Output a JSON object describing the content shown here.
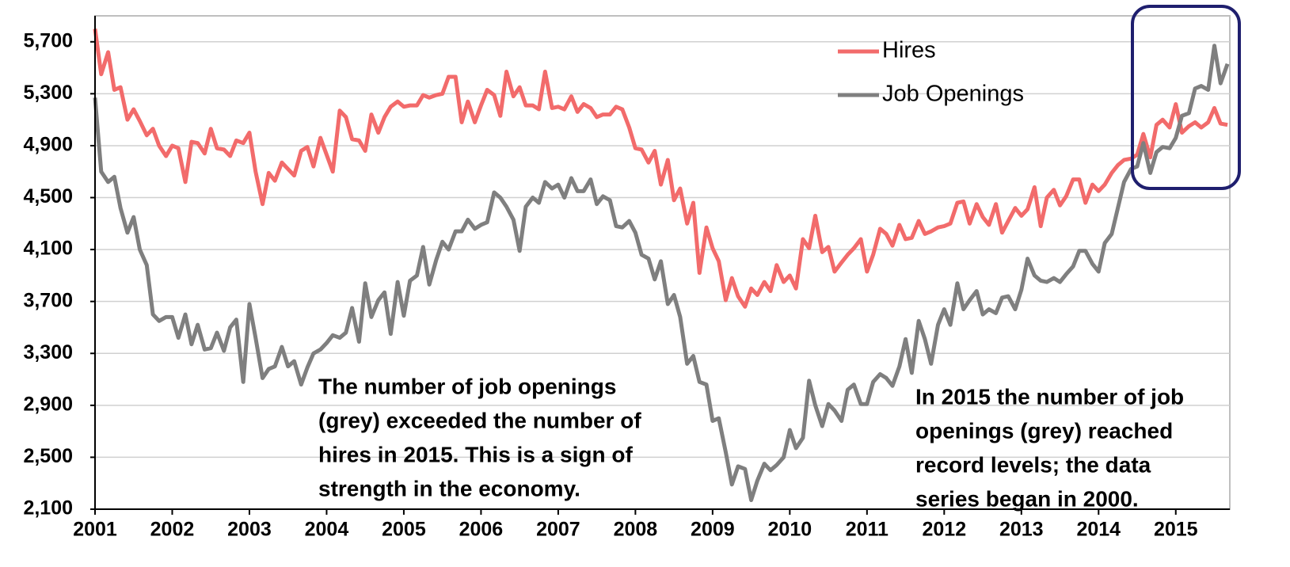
{
  "chart_data": {
    "type": "line",
    "x": [
      2001,
      2001.08,
      2001.17,
      2001.25,
      2001.33,
      2001.42,
      2001.5,
      2001.58,
      2001.67,
      2001.75,
      2001.83,
      2001.92,
      2002,
      2002.08,
      2002.17,
      2002.25,
      2002.33,
      2002.42,
      2002.5,
      2002.58,
      2002.67,
      2002.75,
      2002.83,
      2002.92,
      2003,
      2003.08,
      2003.17,
      2003.25,
      2003.33,
      2003.42,
      2003.5,
      2003.58,
      2003.67,
      2003.75,
      2003.83,
      2003.92,
      2004,
      2004.08,
      2004.17,
      2004.25,
      2004.33,
      2004.42,
      2004.5,
      2004.58,
      2004.67,
      2004.75,
      2004.83,
      2004.92,
      2005,
      2005.08,
      2005.17,
      2005.25,
      2005.33,
      2005.42,
      2005.5,
      2005.58,
      2005.67,
      2005.75,
      2005.83,
      2005.92,
      2006,
      2006.08,
      2006.17,
      2006.25,
      2006.33,
      2006.42,
      2006.5,
      2006.58,
      2006.67,
      2006.75,
      2006.83,
      2006.92,
      2007,
      2007.08,
      2007.17,
      2007.25,
      2007.33,
      2007.42,
      2007.5,
      2007.58,
      2007.67,
      2007.75,
      2007.83,
      2007.92,
      2008,
      2008.08,
      2008.17,
      2008.25,
      2008.33,
      2008.42,
      2008.5,
      2008.58,
      2008.67,
      2008.75,
      2008.83,
      2008.92,
      2009,
      2009.08,
      2009.17,
      2009.25,
      2009.33,
      2009.42,
      2009.5,
      2009.58,
      2009.67,
      2009.75,
      2009.83,
      2009.92,
      2010,
      2010.08,
      2010.17,
      2010.25,
      2010.33,
      2010.42,
      2010.5,
      2010.58,
      2010.67,
      2010.75,
      2010.83,
      2010.92,
      2011,
      2011.08,
      2011.17,
      2011.25,
      2011.33,
      2011.42,
      2011.5,
      2011.58,
      2011.67,
      2011.75,
      2011.83,
      2011.92,
      2012,
      2012.08,
      2012.17,
      2012.25,
      2012.33,
      2012.42,
      2012.5,
      2012.58,
      2012.67,
      2012.75,
      2012.83,
      2012.92,
      2013,
      2013.08,
      2013.17,
      2013.25,
      2013.33,
      2013.42,
      2013.5,
      2013.58,
      2013.67,
      2013.75,
      2013.83,
      2013.92,
      2014,
      2014.08,
      2014.17,
      2014.25,
      2014.33,
      2014.42,
      2014.5,
      2014.58,
      2014.67,
      2014.75,
      2014.83,
      2014.92,
      2015,
      2015.08,
      2015.17,
      2015.25,
      2015.33,
      2015.42,
      2015.5,
      2015.58,
      2015.67
    ],
    "series": [
      {
        "name": "Hires",
        "color": "#f26b6b",
        "values": [
          5800,
          5450,
          5620,
          5330,
          5350,
          5100,
          5180,
          5090,
          4980,
          5030,
          4900,
          4820,
          4900,
          4880,
          4620,
          4930,
          4920,
          4840,
          5030,
          4880,
          4870,
          4820,
          4940,
          4920,
          5000,
          4700,
          4450,
          4690,
          4630,
          4770,
          4720,
          4670,
          4860,
          4890,
          4740,
          4960,
          4830,
          4700,
          5170,
          5120,
          4950,
          4940,
          4860,
          5140,
          5000,
          5120,
          5200,
          5240,
          5200,
          5210,
          5210,
          5290,
          5270,
          5290,
          5300,
          5430,
          5430,
          5080,
          5240,
          5080,
          5210,
          5330,
          5290,
          5130,
          5470,
          5280,
          5350,
          5210,
          5210,
          5180,
          5470,
          5190,
          5200,
          5180,
          5280,
          5160,
          5220,
          5190,
          5120,
          5140,
          5140,
          5200,
          5180,
          5040,
          4880,
          4870,
          4770,
          4860,
          4600,
          4790,
          4480,
          4570,
          4300,
          4460,
          3920,
          4270,
          4110,
          4010,
          3710,
          3880,
          3740,
          3660,
          3800,
          3750,
          3850,
          3780,
          3980,
          3850,
          3900,
          3800,
          4180,
          4110,
          4360,
          4080,
          4120,
          3930,
          4000,
          4060,
          4110,
          4180,
          3930,
          4060,
          4260,
          4220,
          4130,
          4290,
          4180,
          4190,
          4320,
          4220,
          4240,
          4270,
          4280,
          4300,
          4460,
          4470,
          4300,
          4450,
          4350,
          4290,
          4450,
          4230,
          4320,
          4420,
          4360,
          4410,
          4580,
          4280,
          4500,
          4560,
          4440,
          4510,
          4640,
          4640,
          4460,
          4600,
          4550,
          4600,
          4690,
          4750,
          4790,
          4800,
          4830,
          4990,
          4810,
          5060,
          5100,
          5040,
          5220,
          5000,
          5050,
          5080,
          5040,
          5080,
          5190,
          5070,
          5060
        ]
      },
      {
        "name": "Job Openings",
        "color": "#7f7f7f",
        "values": [
          5270,
          4700,
          4620,
          4660,
          4420,
          4230,
          4350,
          4100,
          3980,
          3600,
          3550,
          3580,
          3580,
          3420,
          3600,
          3370,
          3520,
          3330,
          3340,
          3460,
          3320,
          3500,
          3560,
          3080,
          3680,
          3420,
          3110,
          3180,
          3200,
          3350,
          3200,
          3240,
          3060,
          3190,
          3300,
          3330,
          3380,
          3440,
          3420,
          3460,
          3650,
          3390,
          3840,
          3580,
          3710,
          3770,
          3450,
          3850,
          3590,
          3860,
          3900,
          4120,
          3830,
          4020,
          4160,
          4100,
          4240,
          4240,
          4330,
          4260,
          4290,
          4310,
          4540,
          4500,
          4430,
          4330,
          4090,
          4430,
          4500,
          4460,
          4620,
          4570,
          4600,
          4500,
          4650,
          4550,
          4550,
          4640,
          4450,
          4510,
          4480,
          4280,
          4270,
          4320,
          4230,
          4060,
          4030,
          3870,
          4010,
          3680,
          3750,
          3580,
          3220,
          3280,
          3080,
          3060,
          2780,
          2800,
          2540,
          2290,
          2430,
          2410,
          2170,
          2320,
          2450,
          2400,
          2440,
          2500,
          2710,
          2570,
          2650,
          3090,
          2900,
          2740,
          2910,
          2860,
          2780,
          3020,
          3060,
          2910,
          2910,
          3080,
          3140,
          3110,
          3050,
          3200,
          3410,
          3150,
          3550,
          3410,
          3220,
          3520,
          3640,
          3520,
          3840,
          3640,
          3710,
          3780,
          3600,
          3640,
          3610,
          3730,
          3740,
          3640,
          3790,
          4030,
          3900,
          3860,
          3850,
          3880,
          3850,
          3910,
          3970,
          4090,
          4090,
          3990,
          3930,
          4150,
          4220,
          4420,
          4620,
          4720,
          4740,
          4920,
          4690,
          4850,
          4890,
          4880,
          4960,
          5130,
          5150,
          5340,
          5360,
          5330,
          5670,
          5380,
          5530
        ]
      }
    ],
    "xlim": [
      2001,
      2015.7
    ],
    "xticks": [
      2001,
      2002,
      2003,
      2004,
      2005,
      2006,
      2007,
      2008,
      2009,
      2010,
      2011,
      2012,
      2013,
      2014,
      2015
    ],
    "ylim": [
      2100,
      5900
    ],
    "yticks": [
      {
        "value": 2100,
        "label": "2,100"
      },
      {
        "value": 2500,
        "label": "2,500"
      },
      {
        "value": 2900,
        "label": "2,900"
      },
      {
        "value": 3300,
        "label": "3,300"
      },
      {
        "value": 3700,
        "label": "3,700"
      },
      {
        "value": 4100,
        "label": "4,100"
      },
      {
        "value": 4500,
        "label": "4,500"
      },
      {
        "value": 4900,
        "label": "4,900"
      },
      {
        "value": 5300,
        "label": "5,300"
      },
      {
        "value": 5700,
        "label": "5,700"
      }
    ],
    "grid": true,
    "legend": "upper right",
    "annotations": [
      {
        "lines": [
          "The number of job openings",
          "(grey) exceeded the number of",
          "hires in 2015. This is a sign of",
          "strength in the economy."
        ]
      },
      {
        "lines": [
          "In 2015 the number of job",
          "openings (grey) reached",
          "record levels; the data",
          "series began in 2000."
        ]
      }
    ]
  }
}
